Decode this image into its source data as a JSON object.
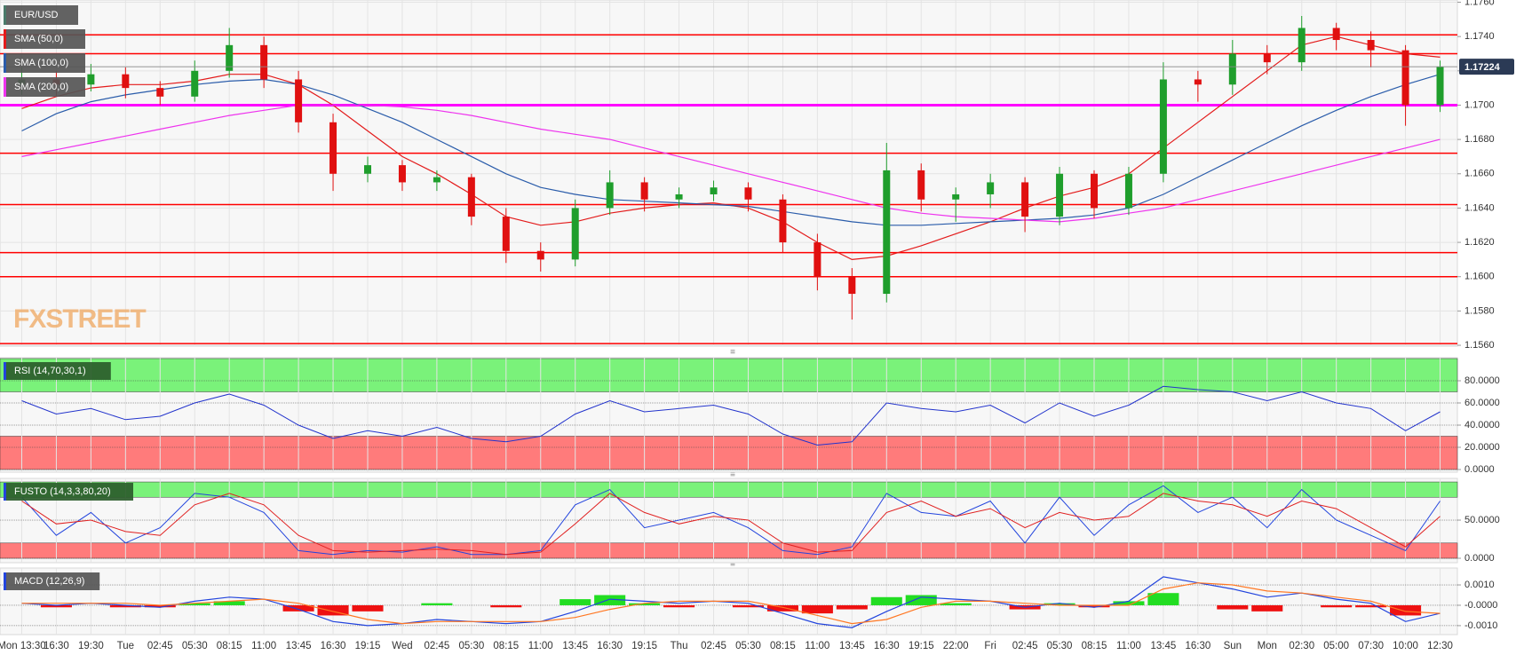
{
  "chart_data": [
    {
      "type": "candlestick",
      "title": "EUR/USD",
      "watermark": "FXSTREET",
      "categories": [
        "Mon 13:30",
        "16:30",
        "19:30",
        "Tue",
        "02:45",
        "05:30",
        "08:15",
        "11:00",
        "13:45",
        "16:30",
        "19:15",
        "Wed",
        "02:45",
        "05:30",
        "08:15",
        "11:00",
        "13:45",
        "16:30",
        "19:15",
        "Thu",
        "02:45",
        "05:30",
        "08:15",
        "11:00",
        "13:45",
        "16:30",
        "19:15",
        "22:00",
        "Fri",
        "02:45",
        "05:30",
        "08:15",
        "11:00",
        "13:45",
        "16:30",
        "Sun",
        "Mon",
        "02:30",
        "05:00",
        "07:30",
        "10:00",
        "12:30"
      ],
      "open": [
        1.1712,
        1.1715,
        1.1712,
        1.1718,
        1.171,
        1.1705,
        1.172,
        1.1735,
        1.1715,
        1.169,
        1.166,
        1.1665,
        1.1655,
        1.1658,
        1.1635,
        1.1615,
        1.161,
        1.164,
        1.1655,
        1.1645,
        1.1648,
        1.1652,
        1.1645,
        1.162,
        1.16,
        1.159,
        1.1662,
        1.1645,
        1.1648,
        1.1655,
        1.1635,
        1.166,
        1.164,
        1.166,
        1.1715,
        1.1712,
        1.173,
        1.1725,
        1.1745,
        1.1738,
        1.1732,
        1.17
      ],
      "high": [
        1.1722,
        1.172,
        1.1724,
        1.1722,
        1.1714,
        1.1726,
        1.1745,
        1.174,
        1.172,
        1.1695,
        1.167,
        1.1668,
        1.1662,
        1.166,
        1.164,
        1.162,
        1.1645,
        1.1662,
        1.1658,
        1.1652,
        1.1656,
        1.1655,
        1.1648,
        1.1625,
        1.1605,
        1.1678,
        1.1666,
        1.1652,
        1.166,
        1.1658,
        1.1664,
        1.1662,
        1.1664,
        1.1725,
        1.172,
        1.1738,
        1.1735,
        1.1752,
        1.1748,
        1.1743,
        1.1735,
        1.1726
      ],
      "low": [
        1.1706,
        1.1705,
        1.1708,
        1.1704,
        1.17,
        1.1702,
        1.1716,
        1.171,
        1.1684,
        1.165,
        1.1655,
        1.165,
        1.165,
        1.163,
        1.1608,
        1.1603,
        1.1606,
        1.1636,
        1.1638,
        1.164,
        1.1644,
        1.1638,
        1.1614,
        1.1592,
        1.1575,
        1.1585,
        1.1638,
        1.1632,
        1.164,
        1.1626,
        1.163,
        1.1634,
        1.1636,
        1.1655,
        1.1702,
        1.1706,
        1.1718,
        1.172,
        1.1732,
        1.1722,
        1.1688,
        1.1696
      ],
      "close": [
        1.1715,
        1.1712,
        1.1718,
        1.171,
        1.1705,
        1.172,
        1.1735,
        1.1715,
        1.169,
        1.166,
        1.1665,
        1.1655,
        1.1658,
        1.1635,
        1.1615,
        1.161,
        1.164,
        1.1655,
        1.1645,
        1.1648,
        1.1652,
        1.1645,
        1.162,
        1.16,
        1.159,
        1.1662,
        1.1645,
        1.1648,
        1.1655,
        1.1635,
        1.166,
        1.164,
        1.166,
        1.1715,
        1.1712,
        1.173,
        1.1725,
        1.1745,
        1.1738,
        1.1732,
        1.17,
        1.17224
      ],
      "up_color": "#1f9e2c",
      "down_color": "#e01010",
      "title_color": "#4a7a6a",
      "series": [
        {
          "name": "SMA (50,0)",
          "color": "#e31b1b",
          "values": [
            1.1698,
            1.1705,
            1.171,
            1.1712,
            1.1712,
            1.1714,
            1.1718,
            1.1718,
            1.1712,
            1.17,
            1.1685,
            1.167,
            1.166,
            1.1648,
            1.1635,
            1.163,
            1.1632,
            1.1637,
            1.164,
            1.1642,
            1.1643,
            1.164,
            1.1632,
            1.162,
            1.161,
            1.1612,
            1.1618,
            1.1625,
            1.1632,
            1.164,
            1.1647,
            1.1652,
            1.166,
            1.1675,
            1.169,
            1.1705,
            1.172,
            1.1735,
            1.174,
            1.1735,
            1.173,
            1.1728
          ]
        },
        {
          "name": "SMA (100,0)",
          "color": "#2a5caa",
          "values": [
            1.1685,
            1.1695,
            1.1702,
            1.1706,
            1.1709,
            1.1712,
            1.1714,
            1.1715,
            1.1712,
            1.1706,
            1.1698,
            1.169,
            1.168,
            1.167,
            1.166,
            1.1652,
            1.1648,
            1.1645,
            1.1644,
            1.1643,
            1.1642,
            1.1641,
            1.1638,
            1.1635,
            1.1632,
            1.163,
            1.163,
            1.1631,
            1.1632,
            1.1633,
            1.1634,
            1.1636,
            1.164,
            1.1648,
            1.1658,
            1.1668,
            1.1678,
            1.1688,
            1.1697,
            1.1705,
            1.1712,
            1.1718
          ]
        },
        {
          "name": "SMA (200,0)",
          "color": "#ee33ee",
          "values": [
            1.167,
            1.1674,
            1.1678,
            1.1682,
            1.1686,
            1.169,
            1.1694,
            1.1697,
            1.17,
            1.17,
            1.17,
            1.1699,
            1.1697,
            1.1694,
            1.169,
            1.1686,
            1.1683,
            1.168,
            1.1675,
            1.167,
            1.1665,
            1.166,
            1.1655,
            1.165,
            1.1645,
            1.164,
            1.1637,
            1.1635,
            1.1634,
            1.1633,
            1.1632,
            1.1634,
            1.1637,
            1.164,
            1.1645,
            1.165,
            1.1655,
            1.166,
            1.1665,
            1.167,
            1.1675,
            1.168
          ]
        }
      ],
      "levels": {
        "color": "#ff0000",
        "values": [
          1.1741,
          1.173,
          1.1672,
          1.1642,
          1.1614,
          1.16,
          1.1561
        ]
      },
      "key_level": {
        "color": "#ff00ff",
        "value": 1.17
      },
      "last_color": "#2b3a55",
      "ylim": [
        1.15595,
        1.17613
      ],
      "yticks": [
        {
          "value": 1.156,
          "label": "1.1560"
        },
        {
          "value": 1.158,
          "label": "1.1580"
        },
        {
          "value": 1.16,
          "label": "1.1600"
        },
        {
          "value": 1.162,
          "label": "1.1620"
        },
        {
          "value": 1.164,
          "label": "1.1640"
        },
        {
          "value": 1.166,
          "label": "1.1660"
        },
        {
          "value": 1.168,
          "label": "1.1680"
        },
        {
          "value": 1.17,
          "label": "1.1700"
        },
        {
          "value": 1.172,
          "label": "1.1720"
        },
        {
          "value": 1.174,
          "label": "1.1740"
        },
        {
          "value": 1.176,
          "label": "1.1760"
        }
      ],
      "grid": true
    },
    {
      "type": "line",
      "title": "RSI (14,70,30,1)",
      "title_color": "#2a5c2a",
      "series": [
        {
          "color": "#2233cc",
          "values": [
            62,
            50,
            55,
            45,
            48,
            60,
            68,
            58,
            40,
            28,
            35,
            30,
            38,
            28,
            25,
            30,
            50,
            62,
            52,
            55,
            58,
            50,
            32,
            22,
            25,
            60,
            55,
            52,
            58,
            42,
            60,
            48,
            58,
            75,
            72,
            70,
            62,
            70,
            60,
            55,
            35,
            52
          ]
        }
      ],
      "zones": [
        {
          "from": 70,
          "to": 100,
          "color": "#7af27a"
        },
        {
          "from": 0,
          "to": 30,
          "color": "#ff7b7b"
        }
      ],
      "ylim": [
        -2.4,
        100.8
      ],
      "yticks": [
        {
          "value": 0,
          "label": "0.0000"
        },
        {
          "value": 20,
          "label": "20.0000"
        },
        {
          "value": 40,
          "label": "40.0000"
        },
        {
          "value": 60,
          "label": "60.0000"
        },
        {
          "value": 80,
          "label": "80.0000"
        }
      ]
    },
    {
      "type": "line",
      "title": "FUSTO (14,3,3,80,20)",
      "title_color": "#2a5c2a",
      "series": [
        {
          "color": "#2244dd",
          "values": [
            80,
            30,
            60,
            20,
            40,
            85,
            80,
            60,
            10,
            5,
            10,
            8,
            15,
            5,
            5,
            10,
            70,
            90,
            40,
            50,
            60,
            40,
            10,
            5,
            15,
            85,
            60,
            55,
            75,
            20,
            80,
            30,
            70,
            95,
            60,
            80,
            40,
            90,
            50,
            30,
            10,
            75
          ]
        },
        {
          "color": "#e02020",
          "values": [
            75,
            45,
            50,
            35,
            30,
            70,
            85,
            70,
            30,
            10,
            8,
            10,
            12,
            10,
            5,
            8,
            45,
            85,
            60,
            45,
            55,
            50,
            20,
            8,
            10,
            60,
            75,
            55,
            65,
            40,
            60,
            50,
            55,
            85,
            75,
            70,
            55,
            75,
            65,
            40,
            15,
            55
          ]
        }
      ],
      "zones": [
        {
          "from": 80,
          "to": 100,
          "color": "#7af27a"
        },
        {
          "from": 0,
          "to": 20,
          "color": "#ff7b7b"
        }
      ],
      "ylim": [
        -5.8,
        104.7
      ],
      "yticks": [
        {
          "value": 0,
          "label": "0.0000"
        },
        {
          "value": 50,
          "label": "50.0000"
        }
      ]
    },
    {
      "type": "macd",
      "title": "MACD (12,26,9)",
      "title_color": "#555555",
      "series": [
        {
          "color": "#2244dd",
          "values": [
            0.0001,
            0,
            0.0001,
            0,
            -0.0001,
            0.0002,
            0.0004,
            0.0003,
            -0.0002,
            -0.0008,
            -0.001,
            -0.0009,
            -0.0007,
            -0.0008,
            -0.0009,
            -0.0008,
            -0.0003,
            0.0003,
            0.0002,
            0.0001,
            0.0002,
            0.0001,
            -0.0004,
            -0.0009,
            -0.0011,
            -0.0003,
            0.0004,
            0.0003,
            0.0002,
            -0.0001,
            0.0001,
            -0.0001,
            0.0002,
            0.0014,
            0.0011,
            0.0008,
            0.0004,
            0.0006,
            0.0003,
            0.0001,
            -0.0008,
            -0.0004
          ]
        },
        {
          "color": "#ff7722",
          "values": [
            0.0001,
            0.0001,
            0.0001,
            0.0001,
            0,
            0.0001,
            0.0002,
            0.0003,
            0.0001,
            -0.0003,
            -0.0007,
            -0.0009,
            -0.0008,
            -0.0008,
            -0.0008,
            -0.0008,
            -0.0006,
            -0.0002,
            0.0001,
            0.0002,
            0.0002,
            0.0002,
            -0.0001,
            -0.0005,
            -0.0009,
            -0.0007,
            -0.0001,
            0.0002,
            0.0002,
            0.0001,
            0,
            0,
            0,
            0.0008,
            0.0011,
            0.001,
            0.0007,
            0.0006,
            0.0004,
            0.0002,
            -0.0003,
            -0.0004
          ]
        }
      ],
      "histogram": {
        "up_color": "#22dd22",
        "down_color": "#ee1111",
        "values": [
          0,
          -0.0001,
          0,
          -0.0001,
          -0.0001,
          0.0001,
          0.0002,
          0,
          -0.0003,
          -0.0005,
          -0.0003,
          0,
          0.0001,
          0,
          -0.0001,
          0,
          0.0003,
          0.0005,
          0.0001,
          -0.0001,
          0,
          -0.0001,
          -0.0003,
          -0.0004,
          -0.0002,
          0.0004,
          0.0005,
          0.0001,
          0,
          -0.0002,
          0.0001,
          -0.0001,
          0.0002,
          0.0006,
          0,
          -0.0002,
          -0.0003,
          0,
          -0.0001,
          -0.0001,
          -0.0005,
          0
        ]
      },
      "ylim": [
        -0.00144,
        0.00183
      ],
      "yticks": [
        {
          "value": 0.001,
          "label": "0.0010"
        },
        {
          "value": 0,
          "label": "-0.0000"
        },
        {
          "value": -0.001,
          "label": "-0.0010"
        }
      ]
    }
  ]
}
